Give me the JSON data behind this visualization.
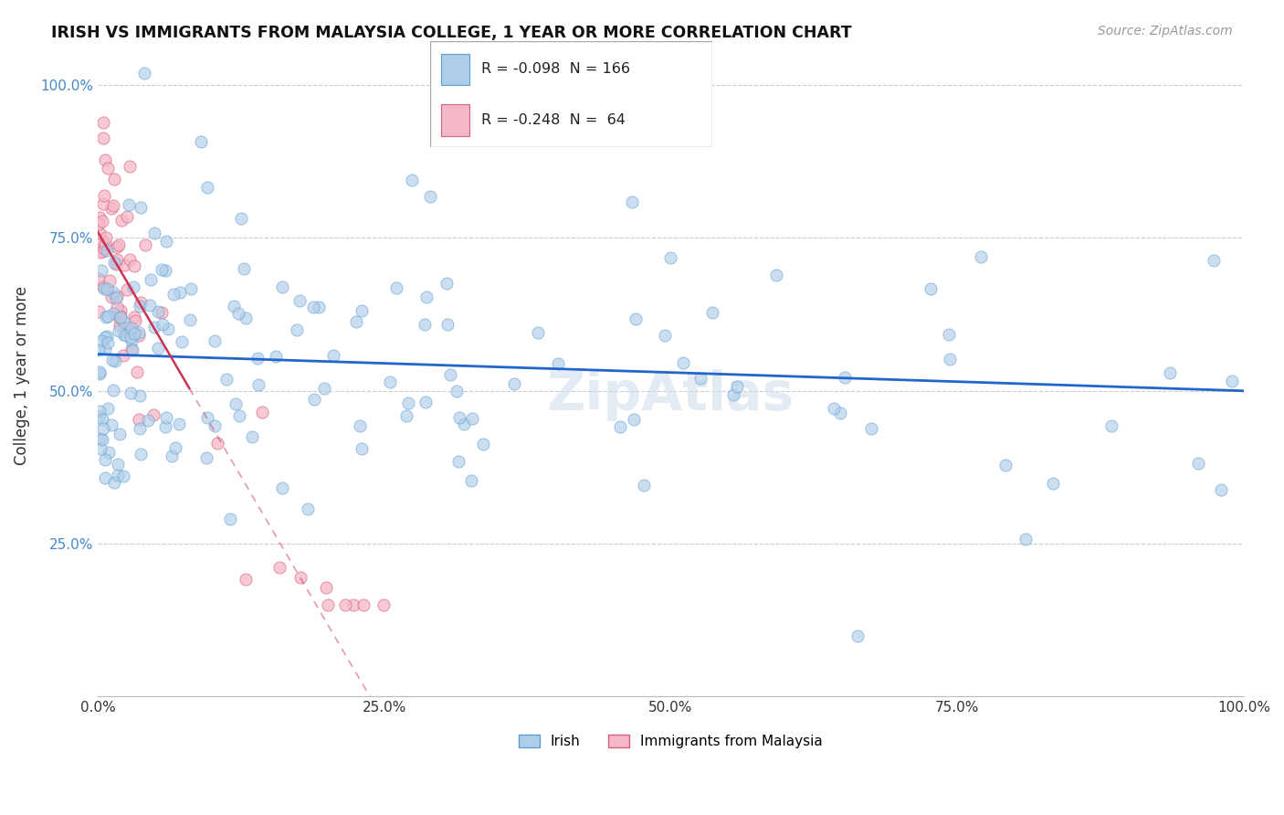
{
  "title": "IRISH VS IMMIGRANTS FROM MALAYSIA COLLEGE, 1 YEAR OR MORE CORRELATION CHART",
  "source_text": "Source: ZipAtlas.com",
  "ylabel": "College, 1 year or more",
  "xlim": [
    0.0,
    1.0
  ],
  "ylim": [
    0.0,
    1.05
  ],
  "x_ticks": [
    0.0,
    0.25,
    0.5,
    0.75,
    1.0
  ],
  "x_tick_labels": [
    "0.0%",
    "25.0%",
    "50.0%",
    "75.0%",
    "100.0%"
  ],
  "y_ticks": [
    0.25,
    0.5,
    0.75,
    1.0
  ],
  "y_tick_labels": [
    "25.0%",
    "50.0%",
    "75.0%",
    "100.0%"
  ],
  "series1_label": "Irish",
  "series2_label": "Immigrants from Malaysia",
  "series1_color": "#aecde8",
  "series2_color": "#f4b8c8",
  "series1_edge": "#5b9fd4",
  "series2_edge": "#d9607a",
  "trend1_color": "#2266cc",
  "trend2_color": "#cc3355",
  "legend_r1": "R = -0.098",
  "legend_n1": "N = 166",
  "legend_r2": "R = -0.248",
  "legend_n2": "N =  64",
  "irish_slope": -0.06,
  "irish_intercept": 0.56,
  "malaysia_slope": -3.2,
  "malaysia_intercept": 0.76
}
